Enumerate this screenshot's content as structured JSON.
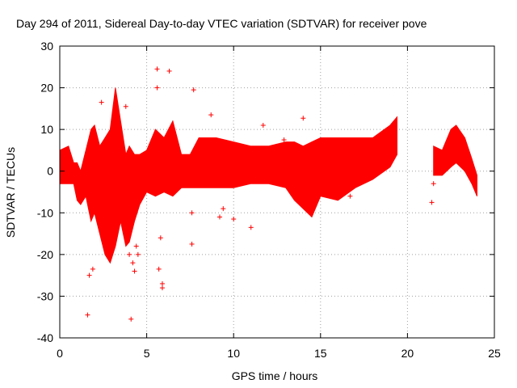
{
  "chart_data": {
    "type": "scatter",
    "title": "Day 294 of 2011, Sidereal Day-to-day VTEC variation (SDTVAR) for receiver pove",
    "xlabel": "GPS time / hours",
    "ylabel": "SDTVAR / TECUs",
    "xlim": [
      0,
      25
    ],
    "ylim": [
      -40,
      30
    ],
    "xticks": [
      0,
      5,
      10,
      15,
      20,
      25
    ],
    "yticks": [
      -40,
      -30,
      -20,
      -10,
      0,
      10,
      20,
      30
    ],
    "grid": true,
    "color": "#ff0000",
    "series": [
      {
        "name": "SDTVAR",
        "envelope": [
          {
            "x": 0.0,
            "lo": -3,
            "hi": 5
          },
          {
            "x": 0.5,
            "lo": -3,
            "hi": 6
          },
          {
            "x": 0.8,
            "lo": -3,
            "hi": 2
          },
          {
            "x": 1.0,
            "lo": -7,
            "hi": 2
          },
          {
            "x": 1.2,
            "lo": -8,
            "hi": 0
          },
          {
            "x": 1.5,
            "lo": -6,
            "hi": 5
          },
          {
            "x": 1.8,
            "lo": -12,
            "hi": 10
          },
          {
            "x": 2.0,
            "lo": -10,
            "hi": 11
          },
          {
            "x": 2.3,
            "lo": -15,
            "hi": 6
          },
          {
            "x": 2.6,
            "lo": -20,
            "hi": 8
          },
          {
            "x": 2.9,
            "lo": -22,
            "hi": 10
          },
          {
            "x": 3.2,
            "lo": -18,
            "hi": 20
          },
          {
            "x": 3.5,
            "lo": -12,
            "hi": 12
          },
          {
            "x": 3.8,
            "lo": -18,
            "hi": 4
          },
          {
            "x": 4.0,
            "lo": -17,
            "hi": 6
          },
          {
            "x": 4.3,
            "lo": -12,
            "hi": 4
          },
          {
            "x": 4.6,
            "lo": -8,
            "hi": 4
          },
          {
            "x": 5.0,
            "lo": -5,
            "hi": 5
          },
          {
            "x": 5.5,
            "lo": -6,
            "hi": 10
          },
          {
            "x": 6.0,
            "lo": -5,
            "hi": 8
          },
          {
            "x": 6.5,
            "lo": -6,
            "hi": 12
          },
          {
            "x": 7.0,
            "lo": -4,
            "hi": 4
          },
          {
            "x": 7.5,
            "lo": -4,
            "hi": 4
          },
          {
            "x": 8.0,
            "lo": -4,
            "hi": 8
          },
          {
            "x": 9.0,
            "lo": -4,
            "hi": 8
          },
          {
            "x": 10.0,
            "lo": -4,
            "hi": 7
          },
          {
            "x": 11.0,
            "lo": -3,
            "hi": 6
          },
          {
            "x": 12.0,
            "lo": -3,
            "hi": 6
          },
          {
            "x": 13.0,
            "lo": -4,
            "hi": 7
          },
          {
            "x": 13.5,
            "lo": -7,
            "hi": 7
          },
          {
            "x": 14.0,
            "lo": -9,
            "hi": 6
          },
          {
            "x": 14.5,
            "lo": -11,
            "hi": 7
          },
          {
            "x": 15.0,
            "lo": -6,
            "hi": 8
          },
          {
            "x": 16.0,
            "lo": -7,
            "hi": 8
          },
          {
            "x": 17.0,
            "lo": -4,
            "hi": 8
          },
          {
            "x": 18.0,
            "lo": -2,
            "hi": 8
          },
          {
            "x": 19.0,
            "lo": 1,
            "hi": 11
          },
          {
            "x": 19.4,
            "lo": 4,
            "hi": 13
          },
          {
            "x": 19.41,
            "lo": null,
            "hi": null
          },
          {
            "x": 21.4,
            "lo": null,
            "hi": null
          },
          {
            "x": 21.5,
            "lo": -1,
            "hi": 6
          },
          {
            "x": 22.0,
            "lo": -1,
            "hi": 5
          },
          {
            "x": 22.5,
            "lo": 1,
            "hi": 10
          },
          {
            "x": 22.8,
            "lo": 2,
            "hi": 11
          },
          {
            "x": 23.3,
            "lo": 0,
            "hi": 8
          },
          {
            "x": 23.7,
            "lo": -3,
            "hi": 3
          },
          {
            "x": 24.0,
            "lo": -6,
            "hi": -1
          }
        ],
        "outliers": [
          {
            "x": 1.6,
            "y": -34.5
          },
          {
            "x": 1.7,
            "y": -25
          },
          {
            "x": 1.9,
            "y": -23.5
          },
          {
            "x": 2.4,
            "y": 16.5
          },
          {
            "x": 3.8,
            "y": 15.5
          },
          {
            "x": 4.0,
            "y": -20
          },
          {
            "x": 4.1,
            "y": -35.5
          },
          {
            "x": 4.2,
            "y": -22
          },
          {
            "x": 4.3,
            "y": -24
          },
          {
            "x": 4.4,
            "y": -18
          },
          {
            "x": 4.5,
            "y": -20
          },
          {
            "x": 5.6,
            "y": 24.5
          },
          {
            "x": 5.6,
            "y": 20
          },
          {
            "x": 5.7,
            "y": -23.5
          },
          {
            "x": 5.8,
            "y": -16
          },
          {
            "x": 5.9,
            "y": -28
          },
          {
            "x": 5.9,
            "y": -27
          },
          {
            "x": 6.3,
            "y": 24
          },
          {
            "x": 7.6,
            "y": -10
          },
          {
            "x": 7.6,
            "y": -17.5
          },
          {
            "x": 7.7,
            "y": 19.5
          },
          {
            "x": 8.7,
            "y": 13.5
          },
          {
            "x": 9.2,
            "y": -11
          },
          {
            "x": 9.4,
            "y": -9
          },
          {
            "x": 10.0,
            "y": -11.5
          },
          {
            "x": 11.0,
            "y": -13.5
          },
          {
            "x": 11.7,
            "y": 11
          },
          {
            "x": 12.9,
            "y": 7.5
          },
          {
            "x": 14.0,
            "y": 12.7
          },
          {
            "x": 16.7,
            "y": -6
          },
          {
            "x": 21.4,
            "y": -7.5
          },
          {
            "x": 21.5,
            "y": -3
          }
        ]
      }
    ]
  }
}
